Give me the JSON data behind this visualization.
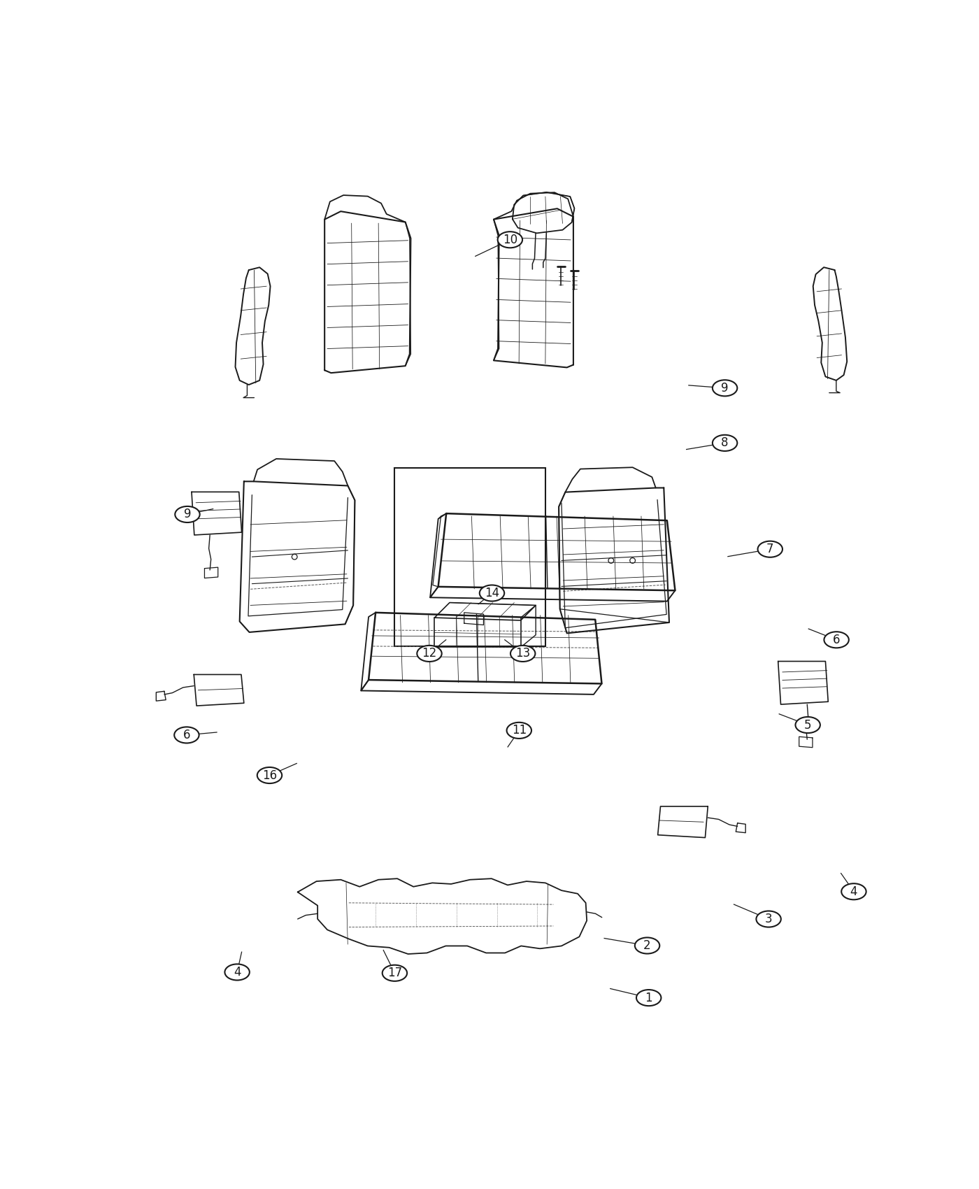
{
  "background_color": "#ffffff",
  "line_color": "#1a1a1a",
  "label_fontsize": 12,
  "parts_labels": [
    [
      1,
      0.695,
      0.934,
      0.644,
      0.924
    ],
    [
      2,
      0.693,
      0.877,
      0.636,
      0.869
    ],
    [
      3,
      0.854,
      0.848,
      0.808,
      0.832
    ],
    [
      4,
      0.149,
      0.906,
      0.155,
      0.884
    ],
    [
      4,
      0.967,
      0.818,
      0.95,
      0.798
    ],
    [
      5,
      0.906,
      0.636,
      0.868,
      0.624
    ],
    [
      6,
      0.082,
      0.647,
      0.122,
      0.644
    ],
    [
      6,
      0.944,
      0.543,
      0.907,
      0.531
    ],
    [
      7,
      0.856,
      0.444,
      0.8,
      0.452
    ],
    [
      8,
      0.796,
      0.328,
      0.745,
      0.335
    ],
    [
      9,
      0.083,
      0.406,
      0.117,
      0.4
    ],
    [
      9,
      0.796,
      0.268,
      0.748,
      0.265
    ],
    [
      10,
      0.511,
      0.106,
      0.465,
      0.124
    ],
    [
      11,
      0.523,
      0.642,
      0.508,
      0.66
    ],
    [
      12,
      0.404,
      0.558,
      0.426,
      0.543
    ],
    [
      13,
      0.528,
      0.558,
      0.504,
      0.543
    ],
    [
      14,
      0.487,
      0.492,
      0.469,
      0.504
    ],
    [
      16,
      0.192,
      0.691,
      0.228,
      0.678
    ],
    [
      17,
      0.358,
      0.907,
      0.343,
      0.882
    ]
  ]
}
